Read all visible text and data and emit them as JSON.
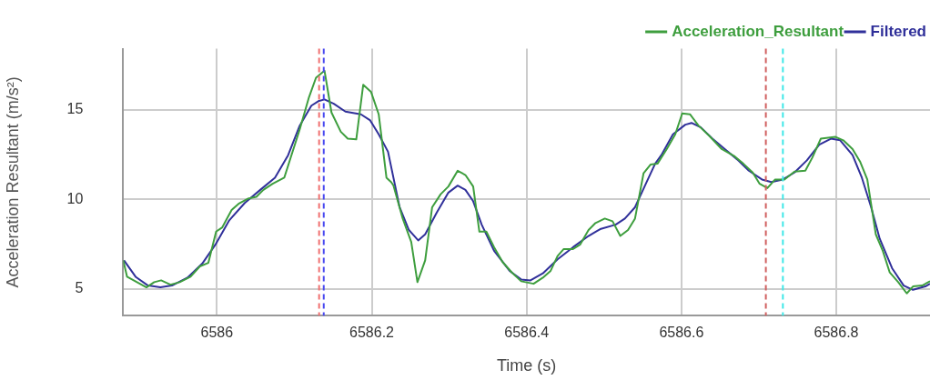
{
  "chart_data": {
    "type": "line",
    "xlabel": "Time (s)",
    "ylabel": "Acceleration Resultant (m/s²)",
    "xlim": [
      6585.879,
      6586.921
    ],
    "xticks": [
      6586,
      6586.2,
      6586.4,
      6586.6,
      6586.8
    ],
    "ylim": [
      3.5,
      18.4
    ],
    "yticks": [
      5,
      10,
      15
    ],
    "grid": true,
    "legend": "top right",
    "marker": "none",
    "line_style": "solid",
    "series": [
      {
        "name": "Acceleration_Resultant",
        "color": "#3e9e3e",
        "x": [
          6585.879,
          6585.884,
          6585.909,
          6585.919,
          6585.928,
          6585.94,
          6585.952,
          6585.966,
          6585.978,
          6585.989,
          6585.999,
          6586.007,
          6586.019,
          6586.028,
          6586.04,
          6586.051,
          6586.06,
          6586.072,
          6586.087,
          6586.107,
          6586.119,
          6586.128,
          6586.139,
          6586.148,
          6586.16,
          6586.169,
          6586.18,
          6586.189,
          6586.199,
          6586.209,
          6586.219,
          6586.225,
          6586.228,
          6586.24,
          6586.251,
          6586.259,
          6586.269,
          6586.278,
          6586.289,
          6586.299,
          6586.311,
          6586.321,
          6586.331,
          6586.339,
          6586.348,
          6586.358,
          6586.369,
          6586.381,
          6586.393,
          6586.409,
          6586.421,
          6586.431,
          6586.44,
          6586.448,
          6586.46,
          6586.469,
          6586.48,
          6586.489,
          6586.501,
          6586.511,
          6586.521,
          6586.531,
          6586.54,
          6586.551,
          6586.56,
          6586.569,
          6586.581,
          6586.592,
          6586.601,
          6586.611,
          6586.622,
          6586.636,
          6586.652,
          6586.668,
          6586.68,
          6586.692,
          6586.701,
          6586.711,
          6586.721,
          6586.733,
          6586.746,
          6586.76,
          6586.769,
          6586.78,
          6586.799,
          6586.809,
          6586.821,
          6586.831,
          6586.84,
          6586.851,
          6586.86,
          6586.869,
          6586.88,
          6586.891,
          6586.899,
          6586.911,
          6586.921
        ],
        "values": [
          6.59,
          5.67,
          5.08,
          5.37,
          5.47,
          5.23,
          5.37,
          5.67,
          6.25,
          6.45,
          8.19,
          8.43,
          9.4,
          9.74,
          10.03,
          10.13,
          10.52,
          10.86,
          11.2,
          13.9,
          15.7,
          16.78,
          17.17,
          14.84,
          13.77,
          13.38,
          13.34,
          16.39,
          16.0,
          14.74,
          11.2,
          10.96,
          10.77,
          8.92,
          7.61,
          5.37,
          6.59,
          9.55,
          10.28,
          10.71,
          11.59,
          11.35,
          10.71,
          8.19,
          8.19,
          7.32,
          6.49,
          5.91,
          5.42,
          5.28,
          5.62,
          6.0,
          6.83,
          7.22,
          7.22,
          7.46,
          8.28,
          8.67,
          8.92,
          8.77,
          7.95,
          8.28,
          8.92,
          11.44,
          11.93,
          11.98,
          12.8,
          13.62,
          14.79,
          14.74,
          14.11,
          13.53,
          12.8,
          12.41,
          11.98,
          11.49,
          10.86,
          10.62,
          11.1,
          11.1,
          11.54,
          11.59,
          12.32,
          13.38,
          13.48,
          13.29,
          12.8,
          12.07,
          11.1,
          8.04,
          7.12,
          5.91,
          5.37,
          4.74,
          5.13,
          5.18,
          5.42
        ]
      },
      {
        "name": "Filtered",
        "color": "#30309a",
        "x": [
          6585.88,
          6585.895,
          6585.911,
          6585.927,
          6585.942,
          6585.962,
          6585.981,
          6585.998,
          6586.016,
          6586.036,
          6586.056,
          6586.075,
          6586.092,
          6586.107,
          6586.122,
          6586.131,
          6586.139,
          6586.151,
          6586.166,
          6586.186,
          6586.198,
          6586.209,
          6586.221,
          6586.236,
          6586.248,
          6586.26,
          6586.269,
          6586.284,
          6586.299,
          6586.311,
          6586.321,
          6586.331,
          6586.342,
          6586.358,
          6586.378,
          6586.393,
          6586.405,
          6586.421,
          6586.44,
          6586.46,
          6586.48,
          6586.495,
          6586.515,
          6586.527,
          6586.54,
          6586.554,
          6586.566,
          6586.574,
          6586.589,
          6586.605,
          6586.613,
          6586.625,
          6586.64,
          6586.656,
          6586.672,
          6586.687,
          6586.704,
          6586.716,
          6586.731,
          6586.746,
          6586.762,
          6586.778,
          6586.793,
          6586.805,
          6586.821,
          6586.833,
          6586.845,
          6586.856,
          6586.872,
          6586.887,
          6586.899,
          6586.915,
          6586.921
        ],
        "values": [
          6.59,
          5.67,
          5.18,
          5.08,
          5.18,
          5.62,
          6.4,
          7.46,
          8.82,
          9.79,
          10.52,
          11.2,
          12.46,
          14.11,
          15.22,
          15.47,
          15.57,
          15.33,
          14.89,
          14.74,
          14.4,
          13.62,
          12.65,
          9.55,
          8.28,
          7.7,
          8.04,
          9.26,
          10.37,
          10.76,
          10.52,
          9.89,
          8.58,
          7.12,
          6.0,
          5.52,
          5.47,
          5.86,
          6.64,
          7.32,
          7.95,
          8.33,
          8.58,
          8.92,
          9.55,
          10.86,
          11.98,
          12.46,
          13.62,
          14.16,
          14.26,
          14.01,
          13.38,
          12.8,
          12.22,
          11.59,
          11.1,
          10.96,
          11.1,
          11.49,
          12.17,
          13.05,
          13.38,
          13.29,
          12.46,
          11.2,
          9.55,
          7.8,
          6.15,
          5.18,
          4.94,
          5.13,
          5.28
        ]
      }
    ],
    "ref_lines": [
      {
        "axis": "x",
        "value": 6586.132,
        "color": "#f07070",
        "line_style": "dashed"
      },
      {
        "axis": "x",
        "value": 6586.138,
        "color": "#4a4af0",
        "line_style": "dashed"
      },
      {
        "axis": "x",
        "value": 6586.709,
        "color": "#d06060",
        "line_style": "dashed"
      },
      {
        "axis": "x",
        "value": 6586.731,
        "color": "#40e8e8",
        "line_style": "dashed"
      }
    ]
  }
}
